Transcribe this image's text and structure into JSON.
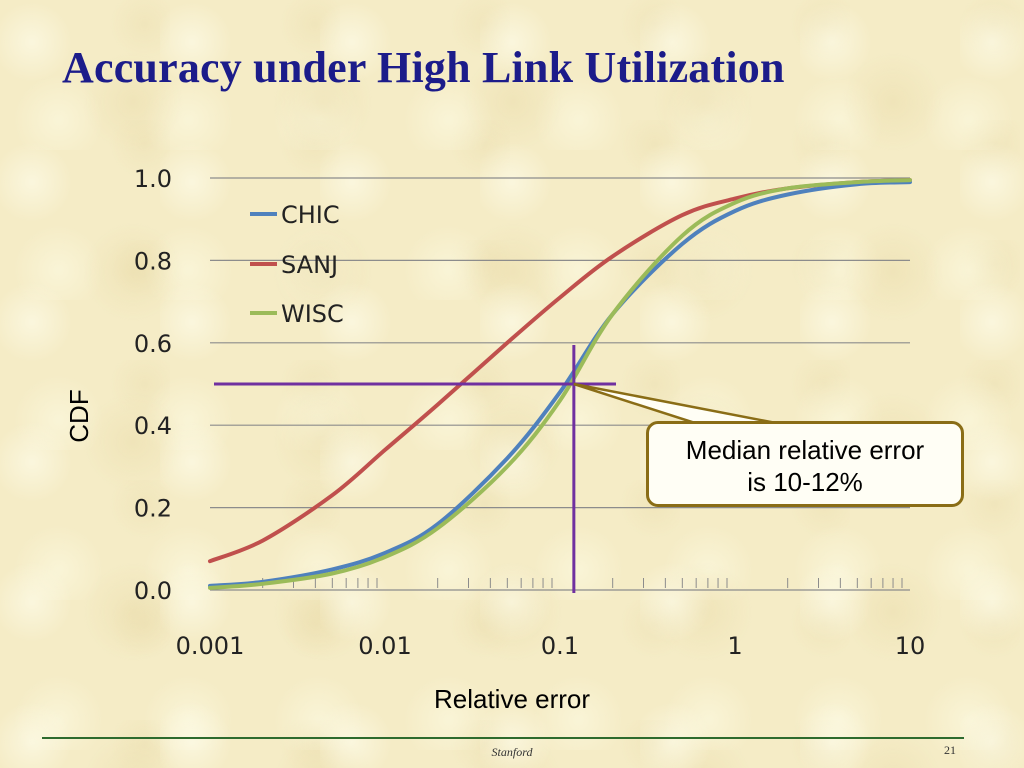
{
  "slide": {
    "title": "Accuracy under High Link Utilization",
    "footer_center": "Stanford",
    "page_number": "21"
  },
  "annotation": {
    "line1": "Median relative error",
    "line2": "is 10-12%"
  },
  "chart_data": {
    "type": "line",
    "xlabel": "Relative error",
    "ylabel": "CDF",
    "xscale": "log",
    "xlim": [
      0.001,
      10
    ],
    "ylim": [
      0.0,
      1.0
    ],
    "x_ticks": [
      {
        "value": 0.001,
        "label": "0.001"
      },
      {
        "value": 0.01,
        "label": "0.01"
      },
      {
        "value": 0.1,
        "label": "0.1"
      },
      {
        "value": 1,
        "label": "1"
      },
      {
        "value": 10,
        "label": "10"
      }
    ],
    "y_ticks": [
      {
        "value": 0.0,
        "label": "0.0"
      },
      {
        "value": 0.2,
        "label": "0.2"
      },
      {
        "value": 0.4,
        "label": "0.4"
      },
      {
        "value": 0.6,
        "label": "0.6"
      },
      {
        "value": 0.8,
        "label": "0.8"
      },
      {
        "value": 1.0,
        "label": "1.0"
      }
    ],
    "grid": "horizontal",
    "legend_position": "top-left",
    "series": [
      {
        "name": "CHIC",
        "color": "#4f81bd",
        "x": [
          0.001,
          0.002,
          0.005,
          0.01,
          0.02,
          0.05,
          0.1,
          0.2,
          0.5,
          1,
          2,
          5,
          10
        ],
        "y": [
          0.01,
          0.02,
          0.05,
          0.09,
          0.16,
          0.32,
          0.48,
          0.67,
          0.84,
          0.92,
          0.96,
          0.985,
          0.99
        ]
      },
      {
        "name": "SANJ",
        "color": "#c0504d",
        "x": [
          0.001,
          0.002,
          0.005,
          0.01,
          0.02,
          0.05,
          0.1,
          0.2,
          0.5,
          1,
          2,
          5,
          10
        ],
        "y": [
          0.07,
          0.12,
          0.23,
          0.34,
          0.45,
          0.6,
          0.71,
          0.81,
          0.91,
          0.95,
          0.975,
          0.99,
          0.995
        ]
      },
      {
        "name": "WISC",
        "color": "#9bbb59",
        "x": [
          0.001,
          0.002,
          0.005,
          0.01,
          0.02,
          0.05,
          0.1,
          0.2,
          0.5,
          1,
          2,
          5,
          10
        ],
        "y": [
          0.005,
          0.015,
          0.04,
          0.08,
          0.15,
          0.3,
          0.46,
          0.67,
          0.86,
          0.94,
          0.975,
          0.99,
          0.995
        ]
      }
    ],
    "median_marker": {
      "x": 0.12,
      "y": 0.5,
      "color": "#7030a0"
    }
  }
}
